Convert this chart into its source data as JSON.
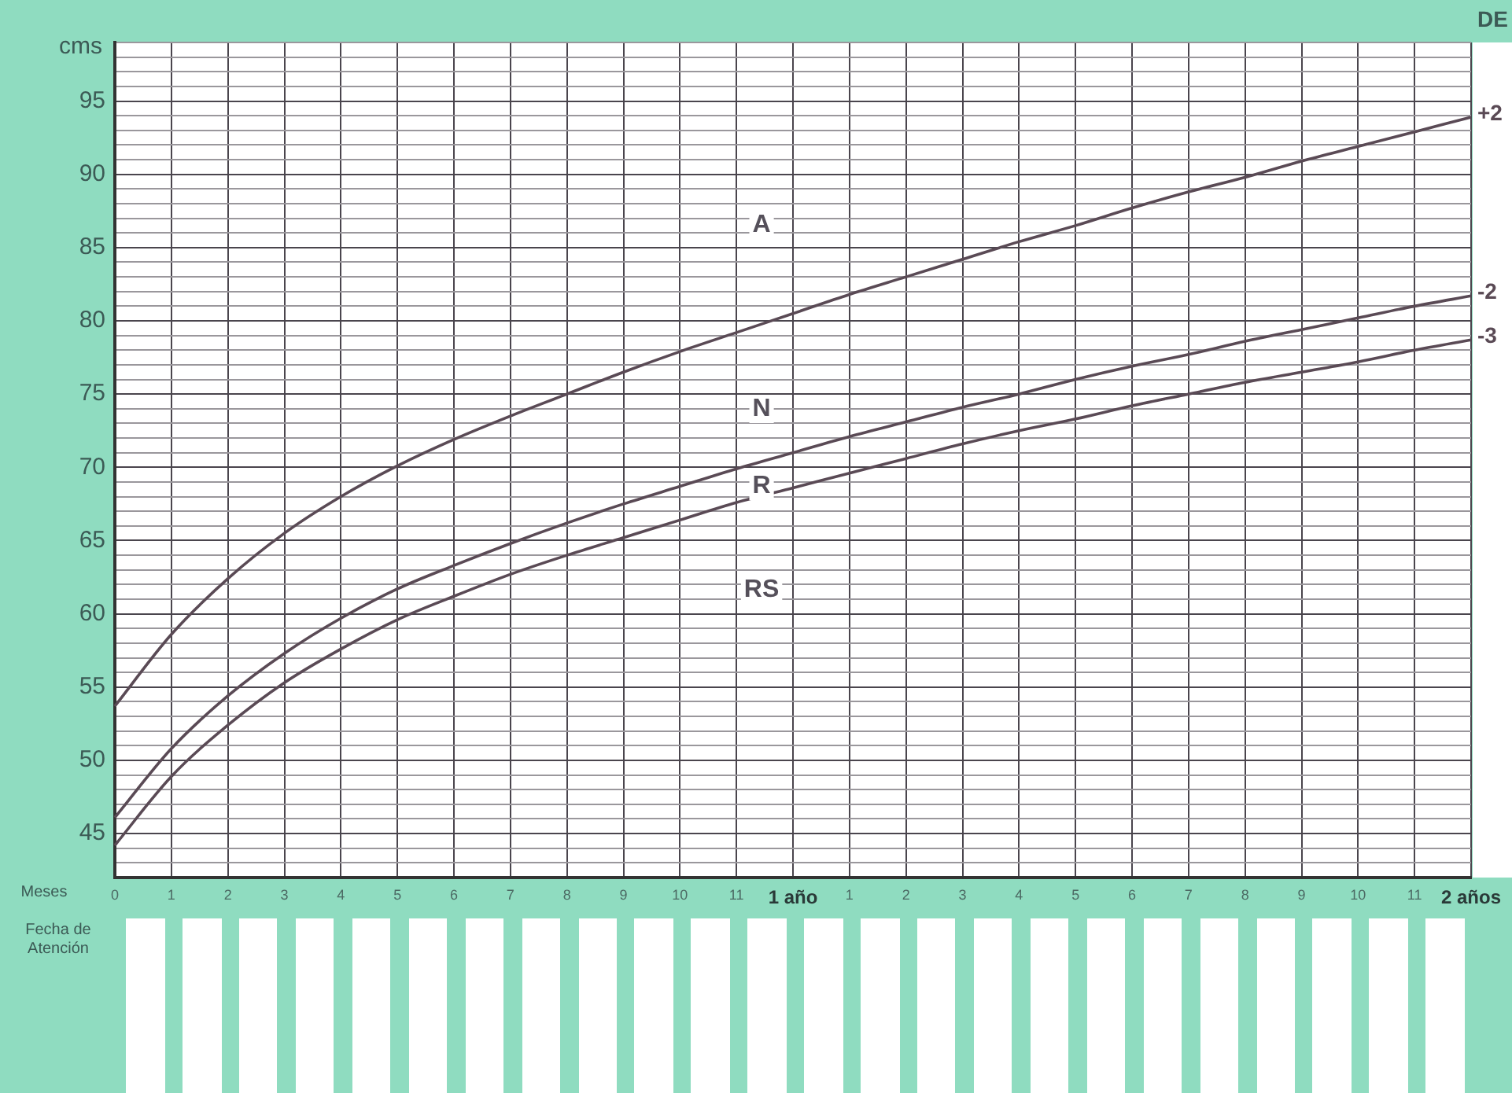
{
  "chart_data": {
    "type": "line",
    "ylabel": "cms",
    "xlabel": "Meses",
    "legend_title": "DE",
    "categories": [
      "0",
      "1",
      "2",
      "3",
      "4",
      "5",
      "6",
      "7",
      "8",
      "9",
      "10",
      "11",
      "1 año",
      "1",
      "2",
      "3",
      "4",
      "5",
      "6",
      "7",
      "8",
      "9",
      "10",
      "11",
      "2 años"
    ],
    "series": [
      {
        "name": "+2",
        "color": "#5a4a55",
        "values": [
          53.7,
          58.6,
          62.4,
          65.5,
          68.0,
          70.1,
          71.9,
          73.5,
          75.0,
          76.5,
          77.9,
          79.2,
          80.5,
          81.8,
          83.0,
          84.2,
          85.4,
          86.5,
          87.7,
          88.8,
          89.8,
          90.9,
          91.9,
          92.9,
          93.9
        ]
      },
      {
        "name": "-2",
        "color": "#5a4a55",
        "values": [
          46.1,
          50.8,
          54.4,
          57.3,
          59.7,
          61.7,
          63.3,
          64.8,
          66.2,
          67.5,
          68.7,
          69.9,
          71.0,
          72.1,
          73.1,
          74.1,
          75.0,
          76.0,
          76.9,
          77.7,
          78.6,
          79.4,
          80.2,
          81.0,
          81.7
        ]
      },
      {
        "name": "-3",
        "color": "#5a4a55",
        "values": [
          44.2,
          48.9,
          52.4,
          55.3,
          57.6,
          59.6,
          61.2,
          62.7,
          64.0,
          65.2,
          66.4,
          67.6,
          68.6,
          69.6,
          70.6,
          71.6,
          72.5,
          73.3,
          74.2,
          75.0,
          75.8,
          76.5,
          77.2,
          78.0,
          78.7
        ]
      }
    ],
    "ylim": [
      42,
      99
    ],
    "yticks": [
      {
        "value": 42,
        "label": null
      },
      {
        "value": 43,
        "label": null
      },
      {
        "value": 44,
        "label": null
      },
      45,
      {
        "value": 46,
        "label": null
      },
      {
        "value": 47,
        "label": null
      },
      {
        "value": 48,
        "label": null
      },
      {
        "value": 49,
        "label": null
      },
      50,
      {
        "value": 51,
        "label": null
      },
      {
        "value": 52,
        "label": null
      },
      {
        "value": 53,
        "label": null
      },
      {
        "value": 54,
        "label": null
      },
      55,
      {
        "value": 56,
        "label": null
      },
      {
        "value": 57,
        "label": null
      },
      {
        "value": 58,
        "label": null
      },
      {
        "value": 59,
        "label": null
      },
      60,
      {
        "value": 61,
        "label": null
      },
      {
        "value": 62,
        "label": null
      },
      {
        "value": 63,
        "label": null
      },
      {
        "value": 64,
        "label": null
      },
      65,
      {
        "value": 66,
        "label": null
      },
      {
        "value": 67,
        "label": null
      },
      {
        "value": 68,
        "label": null
      },
      {
        "value": 69,
        "label": null
      },
      70,
      {
        "value": 71,
        "label": null
      },
      {
        "value": 72,
        "label": null
      },
      {
        "value": 73,
        "label": null
      },
      {
        "value": 74,
        "label": null
      },
      75,
      {
        "value": 76,
        "label": null
      },
      {
        "value": 77,
        "label": null
      },
      {
        "value": 78,
        "label": null
      },
      {
        "value": 79,
        "label": null
      },
      80,
      {
        "value": 81,
        "label": null
      },
      {
        "value": 82,
        "label": null
      },
      {
        "value": 83,
        "label": null
      },
      {
        "value": 84,
        "label": null
      },
      85,
      {
        "value": 86,
        "label": null
      },
      {
        "value": 87,
        "label": null
      },
      {
        "value": 88,
        "label": null
      },
      {
        "value": 89,
        "label": null
      },
      90,
      {
        "value": 91,
        "label": null
      },
      {
        "value": 92,
        "label": null
      },
      {
        "value": 93,
        "label": null
      },
      {
        "value": 94,
        "label": null
      },
      95,
      {
        "value": 96,
        "label": null
      },
      {
        "value": 97,
        "label": null
      },
      {
        "value": 98,
        "label": null
      },
      {
        "value": 99,
        "label": null
      }
    ],
    "grid": true,
    "legend": false,
    "marker": "none",
    "line_style": "solid",
    "annotations": [
      "A",
      "N",
      "R",
      "RS",
      "Fecha de Atención"
    ]
  }
}
